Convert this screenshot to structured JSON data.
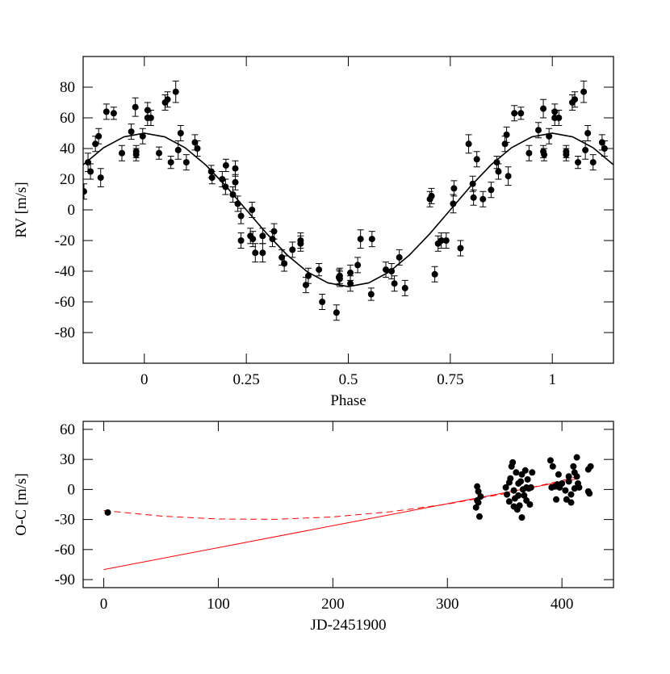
{
  "chart_data": [
    {
      "type": "scatter",
      "xlabel": "Phase",
      "ylabel": "RV [m/s]",
      "xlim": [
        -0.15,
        1.15
      ],
      "ylim": [
        -100,
        100
      ],
      "xticks": [
        0,
        0.25,
        0.5,
        0.75,
        1
      ],
      "yticks": [
        -80,
        -60,
        -40,
        -20,
        0,
        20,
        40,
        60,
        80
      ],
      "series": [
        {
          "color": "#000000",
          "x": [
            -0.148,
            -0.138,
            -0.132,
            -0.12,
            -0.112,
            -0.107,
            -0.093,
            -0.075,
            -0.055,
            -0.032,
            -0.02,
            -0.02,
            -0.022,
            -0.004,
            0.008,
            0.008,
            0.016,
            0.036,
            0.051,
            0.057,
            0.065,
            0.077,
            0.083,
            0.089,
            0.103,
            0.124,
            0.13,
            0.164,
            0.166,
            0.191,
            0.199,
            0.2,
            0.217,
            0.223,
            0.223,
            0.229,
            0.237,
            0.237,
            0.26,
            0.266,
            0.264,
            0.272,
            0.29,
            0.29,
            0.314,
            0.318,
            0.337,
            0.343,
            0.363,
            0.383,
            0.383,
            0.396,
            0.402,
            0.428,
            0.436,
            0.471,
            0.477,
            0.479,
            0.479,
            0.505,
            0.505,
            0.523,
            0.53,
            0.558,
            0.556,
            0.592,
            0.606,
            0.613,
            0.625,
            0.639,
            0.7,
            0.704,
            0.712,
            0.72,
            0.728,
            0.74,
            0.757,
            0.759,
            0.775,
            0.795,
            0.805,
            0.807,
            0.815,
            0.83,
            0.85,
            0.864,
            0.868,
            0.884,
            0.888,
            0.892,
            0.907,
            0.923,
            0.943,
            0.966,
            0.978,
            0.98,
            0.978,
            0.992,
            1.006,
            1.006,
            1.016,
            1.034,
            1.034,
            1.049,
            1.055,
            1.063,
            1.077,
            1.081,
            1.087,
            1.1,
            1.122,
            1.128
          ],
          "values": [
            12,
            31,
            25,
            43,
            48,
            21,
            64,
            63,
            37,
            51,
            38,
            36,
            67,
            48,
            65,
            60,
            60,
            37,
            70,
            72,
            31,
            77,
            39,
            50,
            31,
            44,
            40,
            25,
            21,
            20,
            15,
            29,
            10,
            27,
            18,
            4,
            -20,
            -4,
            -17,
            -19,
            0,
            -28,
            -17,
            -28,
            -19,
            -14,
            -31,
            -35,
            -26,
            -22,
            -20,
            -49,
            -43,
            -39,
            -60,
            -67,
            -44,
            -45,
            -43,
            -41,
            -48,
            -36,
            -19,
            -19,
            -55,
            -39,
            -40,
            -48,
            -31,
            -51,
            7,
            9,
            -42,
            -22,
            -20,
            -20,
            4,
            14,
            -25,
            43,
            17,
            8,
            33,
            7,
            13,
            31,
            25,
            43,
            49,
            22,
            63,
            63,
            37,
            52,
            38,
            36,
            66,
            48,
            64,
            60,
            60,
            38,
            36,
            70,
            72,
            31,
            77,
            39,
            50,
            31,
            44,
            40
          ],
          "errors": [
            5,
            6,
            5,
            5,
            5,
            6,
            5,
            4,
            5,
            5,
            4,
            4,
            6,
            5,
            5,
            5,
            5,
            4,
            5,
            5,
            4,
            7,
            6,
            5,
            5,
            5,
            5,
            4,
            4,
            5,
            5,
            4,
            5,
            5,
            5,
            5,
            5,
            5,
            5,
            5,
            5,
            6,
            5,
            6,
            5,
            5,
            5,
            5,
            5,
            5,
            5,
            5,
            5,
            4,
            5,
            5,
            5,
            5,
            5,
            5,
            5,
            5,
            6,
            5,
            4,
            5,
            5,
            5,
            5,
            5,
            5,
            5,
            5,
            5,
            5,
            5,
            6,
            5,
            5,
            6,
            5,
            5,
            5,
            5,
            5,
            4,
            5,
            5,
            5,
            6,
            5,
            4,
            5,
            5,
            4,
            4,
            6,
            5,
            5,
            5,
            5,
            4,
            4,
            5,
            5,
            4,
            7,
            6,
            5,
            5,
            5,
            5
          ]
        }
      ],
      "lines": [
        {
          "color": "#000000",
          "dash": false,
          "x": [
            -0.15,
            -0.1,
            -0.05,
            0,
            0.05,
            0.1,
            0.15,
            0.2,
            0.25,
            0.3,
            0.35,
            0.4,
            0.45,
            0.5,
            0.55,
            0.6,
            0.65,
            0.7,
            0.75,
            0.8,
            0.85,
            0.9,
            0.95,
            1,
            1.05,
            1.1,
            1.15
          ],
          "values": [
            29.4,
            40.5,
            47.6,
            50,
            47.6,
            40.5,
            29.4,
            15.5,
            0,
            -15.5,
            -29.4,
            -40.5,
            -47.6,
            -50,
            -47.6,
            -40.5,
            -29.4,
            -15.5,
            0,
            15.5,
            29.4,
            40.5,
            47.6,
            50,
            47.6,
            40.5,
            29.4
          ]
        }
      ]
    },
    {
      "type": "scatter",
      "xlabel": "JD-2451900",
      "ylabel": "O-C [m/s]",
      "xlim": [
        -18,
        445
      ],
      "ylim": [
        -98,
        68
      ],
      "xticks": [
        0,
        100,
        200,
        300,
        400
      ],
      "yticks": [
        -90,
        -60,
        -30,
        0,
        30,
        60
      ],
      "series": [
        {
          "color": "#000000",
          "x": [
            3.5,
            325,
            326,
            326,
            327,
            328,
            329,
            327,
            351,
            352,
            354,
            354,
            355,
            356,
            357,
            358,
            358,
            359,
            360,
            361,
            362,
            362,
            363,
            364,
            365,
            365,
            366,
            367,
            368,
            369,
            369,
            370,
            371,
            372,
            373,
            374,
            390,
            391,
            392,
            394,
            395,
            396,
            397,
            398,
            400,
            403,
            404,
            406,
            406,
            408,
            408,
            410,
            411,
            411,
            413,
            413,
            414,
            415,
            423,
            425,
            424,
            423
          ],
          "values": [
            -23,
            -18,
            3,
            -11,
            -13,
            -27,
            -7,
            -2,
            2,
            -5,
            7,
            -12,
            11,
            23,
            27,
            -1,
            -17,
            -9,
            17,
            -20,
            6,
            -6,
            -16,
            8,
            -28,
            15,
            0,
            -6,
            19,
            2,
            -11,
            10,
            1,
            -15,
            2,
            17,
            29,
            2,
            23,
            3,
            -10,
            5,
            15,
            2,
            6,
            -1,
            -10,
            8,
            13,
            -13,
            -5,
            23,
            1,
            17,
            32,
            13,
            6,
            2,
            20,
            23,
            -4,
            -2
          ]
        }
      ],
      "lines": [
        {
          "color": "#ff0000",
          "dash": false,
          "x": [
            0,
            415
          ],
          "values": [
            -80,
            11
          ]
        },
        {
          "color": "#ff0000",
          "dash": true,
          "x": [
            0,
            50,
            100,
            150,
            200,
            250,
            300,
            350,
            400,
            415
          ],
          "values": [
            -21,
            -26.6,
            -29.5,
            -29.8,
            -27.4,
            -22.3,
            -14.6,
            -4.2,
            8.9,
            13.3
          ]
        }
      ]
    }
  ]
}
